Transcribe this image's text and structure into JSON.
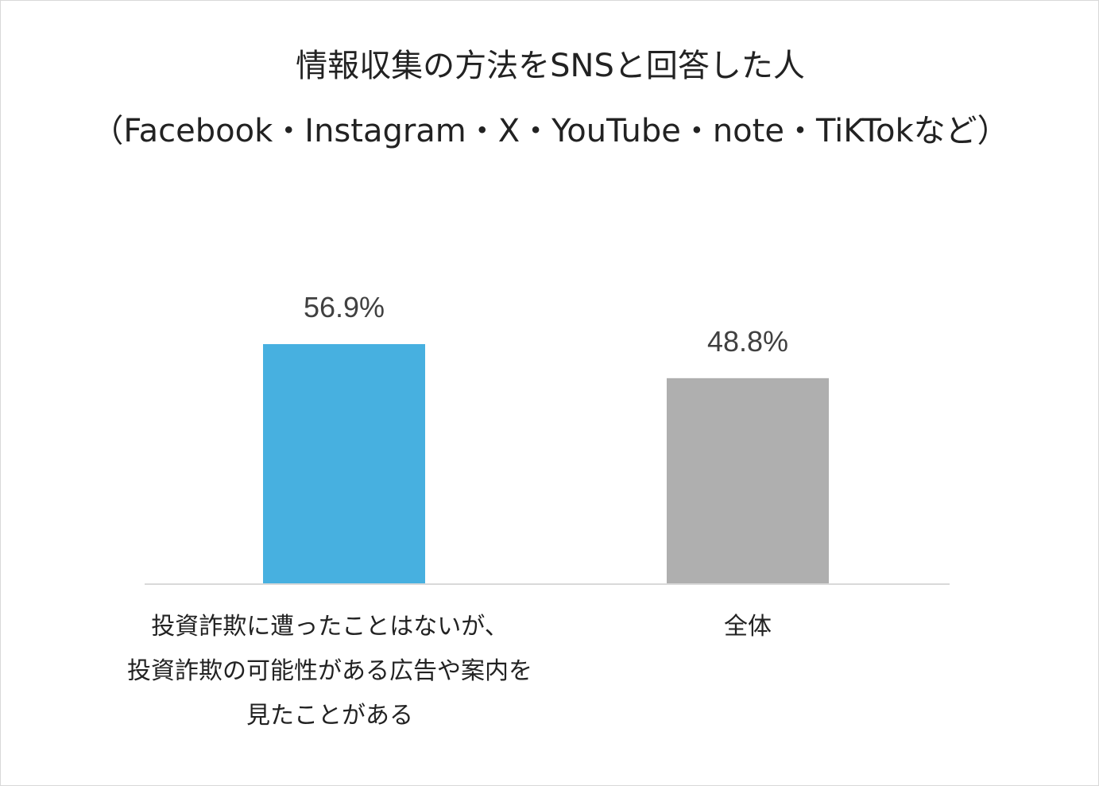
{
  "chart_data": {
    "type": "bar",
    "title": "情報収集の方法をSNSと回答した人",
    "subtitle": "（Facebook・Instagram・X・YouTube・note・TiKTokなど）",
    "categories": [
      [
        "投資詐欺に遭ったことはないが、",
        "投資詐欺の可能性がある広告や案内を",
        "見たことがある"
      ],
      [
        "全体"
      ]
    ],
    "values": [
      56.9,
      48.8
    ],
    "data_labels": [
      "56.9%",
      "48.8%"
    ],
    "colors": [
      "#47B0E0",
      "#AFAFAF"
    ],
    "xlabel": "",
    "ylabel": "",
    "ylim": [
      0,
      100
    ],
    "grid": false,
    "legend": "none"
  }
}
